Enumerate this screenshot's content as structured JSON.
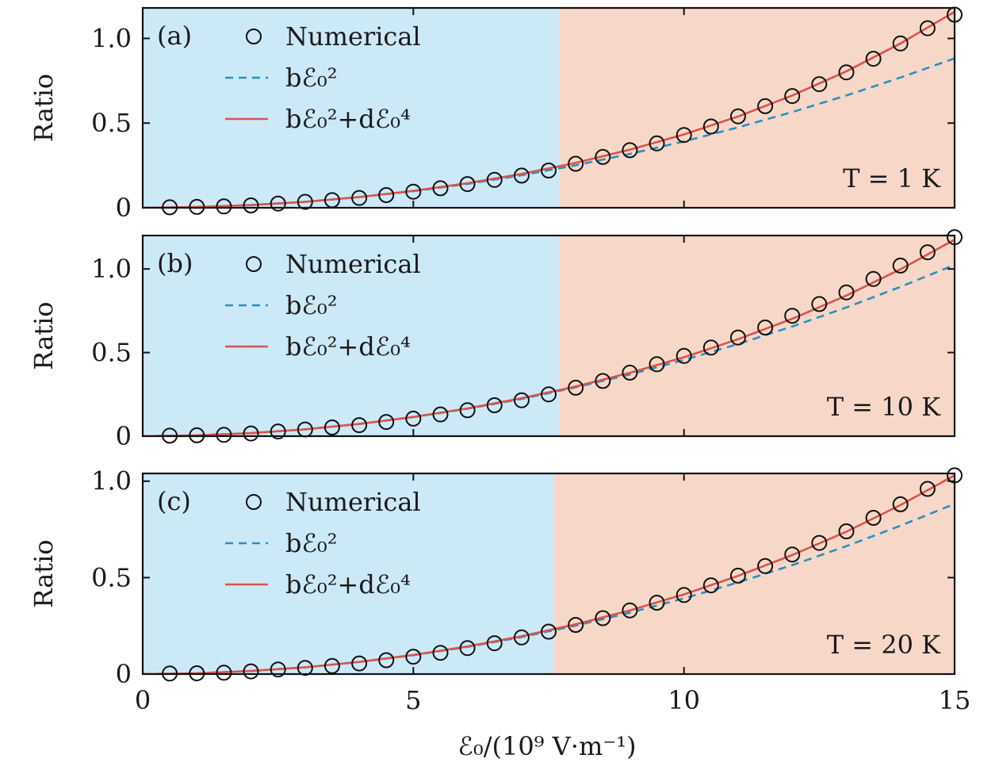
{
  "figure": {
    "x_axis_label": "ℰ₀/(10⁹ V·m⁻¹)",
    "y_axis_label": "Ratio",
    "x_tick_labels": [
      "0",
      "5",
      "10",
      "15"
    ],
    "y_tick_labels": [
      "0",
      "0.5",
      "1.0"
    ],
    "region_colors": {
      "low_field": "#cce9f8",
      "high_field": "#f7d8c8"
    },
    "series_colors": {
      "numerical": "#111111",
      "quadratic": "#2a8fc1",
      "quartic": "#d9544d"
    }
  },
  "chart_data": [
    {
      "type": "line",
      "panel_tag": "(a)",
      "temperature_label": "T = 1 K",
      "xlim": [
        0,
        15
      ],
      "ylim": [
        0,
        1.18
      ],
      "yticks": [
        0,
        0.5,
        1.0
      ],
      "xticks": [
        0,
        5,
        10,
        15
      ],
      "region_split_x": 7.7,
      "legend": [
        "Numerical",
        "bℰ₀²",
        "bℰ₀²+dℰ₀⁴"
      ],
      "series": [
        {
          "name": "Numerical",
          "style": "markers",
          "x": [
            0.5,
            1.0,
            1.5,
            2.0,
            2.5,
            3.0,
            3.5,
            4.0,
            4.5,
            5.0,
            5.5,
            6.0,
            6.5,
            7.0,
            7.5,
            8.0,
            8.5,
            9.0,
            9.5,
            10.0,
            10.5,
            11.0,
            11.5,
            12.0,
            12.5,
            13.0,
            13.5,
            14.0,
            14.5,
            15.0
          ],
          "y": [
            0.003,
            0.005,
            0.008,
            0.014,
            0.025,
            0.035,
            0.045,
            0.058,
            0.075,
            0.095,
            0.115,
            0.14,
            0.165,
            0.19,
            0.22,
            0.26,
            0.3,
            0.34,
            0.38,
            0.43,
            0.48,
            0.54,
            0.6,
            0.66,
            0.73,
            0.8,
            0.88,
            0.97,
            1.06,
            1.14
          ]
        },
        {
          "name": "bℰ₀²",
          "style": "dashed",
          "x": [
            0.0,
            1.0,
            2.0,
            3.0,
            4.0,
            5.0,
            6.0,
            7.0,
            8.0,
            9.0,
            10.0,
            11.0,
            12.0,
            13.0,
            14.0,
            15.0
          ],
          "y": [
            0.0,
            0.004,
            0.016,
            0.035,
            0.063,
            0.098,
            0.141,
            0.192,
            0.251,
            0.318,
            0.392,
            0.475,
            0.565,
            0.663,
            0.769,
            0.882
          ]
        },
        {
          "name": "bℰ₀²+dℰ₀⁴",
          "style": "solid",
          "x": [
            0.0,
            1.0,
            2.0,
            3.0,
            4.0,
            5.0,
            6.0,
            7.0,
            8.0,
            9.0,
            10.0,
            11.0,
            12.0,
            13.0,
            14.0,
            15.0
          ],
          "y": [
            0.0,
            0.004,
            0.016,
            0.035,
            0.063,
            0.1,
            0.145,
            0.2,
            0.265,
            0.343,
            0.433,
            0.539,
            0.663,
            0.806,
            0.97,
            1.157
          ]
        }
      ]
    },
    {
      "type": "line",
      "panel_tag": "(b)",
      "temperature_label": "T = 10 K",
      "xlim": [
        0,
        15
      ],
      "ylim": [
        0,
        1.2
      ],
      "yticks": [
        0,
        0.5,
        1.0
      ],
      "xticks": [
        0,
        5,
        10,
        15
      ],
      "region_split_x": 7.7,
      "legend": [
        "Numerical",
        "bℰ₀²",
        "bℰ₀²+dℰ₀⁴"
      ],
      "series": [
        {
          "name": "Numerical",
          "style": "markers",
          "x": [
            0.5,
            1.0,
            1.5,
            2.0,
            2.5,
            3.0,
            3.5,
            4.0,
            4.5,
            5.0,
            5.5,
            6.0,
            6.5,
            7.0,
            7.5,
            8.0,
            8.5,
            9.0,
            9.5,
            10.0,
            10.5,
            11.0,
            11.5,
            12.0,
            12.5,
            13.0,
            13.5,
            14.0,
            14.5,
            15.0
          ],
          "y": [
            0.003,
            0.005,
            0.008,
            0.016,
            0.028,
            0.04,
            0.052,
            0.066,
            0.085,
            0.105,
            0.13,
            0.155,
            0.185,
            0.215,
            0.25,
            0.29,
            0.33,
            0.38,
            0.43,
            0.48,
            0.53,
            0.59,
            0.65,
            0.72,
            0.79,
            0.86,
            0.94,
            1.02,
            1.1,
            1.19
          ]
        },
        {
          "name": "bℰ₀²",
          "style": "dashed",
          "x": [
            0.0,
            1.0,
            2.0,
            3.0,
            4.0,
            5.0,
            6.0,
            7.0,
            8.0,
            9.0,
            10.0,
            11.0,
            12.0,
            13.0,
            14.0,
            15.0
          ],
          "y": [
            0.0,
            0.005,
            0.018,
            0.041,
            0.073,
            0.114,
            0.164,
            0.223,
            0.292,
            0.369,
            0.456,
            0.551,
            0.656,
            0.77,
            0.893,
            1.025
          ]
        },
        {
          "name": "bℰ₀²+dℰ₀⁴",
          "style": "solid",
          "x": [
            0.0,
            1.0,
            2.0,
            3.0,
            4.0,
            5.0,
            6.0,
            7.0,
            8.0,
            9.0,
            10.0,
            11.0,
            12.0,
            13.0,
            14.0,
            15.0
          ],
          "y": [
            0.0,
            0.005,
            0.018,
            0.041,
            0.073,
            0.115,
            0.166,
            0.227,
            0.297,
            0.379,
            0.472,
            0.58,
            0.702,
            0.841,
            0.998,
            1.176
          ]
        }
      ]
    },
    {
      "type": "line",
      "panel_tag": "(c)",
      "temperature_label": "T = 20 K",
      "xlim": [
        0,
        15
      ],
      "ylim": [
        0,
        1.04
      ],
      "yticks": [
        0,
        0.5,
        1.0
      ],
      "xticks": [
        0,
        5,
        10,
        15
      ],
      "region_split_x": 7.6,
      "legend": [
        "Numerical",
        "bℰ₀²",
        "bℰ₀²+dℰ₀⁴"
      ],
      "series": [
        {
          "name": "Numerical",
          "style": "markers",
          "x": [
            0.5,
            1.0,
            1.5,
            2.0,
            2.5,
            3.0,
            3.5,
            4.0,
            4.5,
            5.0,
            5.5,
            6.0,
            6.5,
            7.0,
            7.5,
            8.0,
            8.5,
            9.0,
            9.5,
            10.0,
            10.5,
            11.0,
            11.5,
            12.0,
            12.5,
            13.0,
            13.5,
            14.0,
            14.5,
            15.0
          ],
          "y": [
            0.003,
            0.004,
            0.007,
            0.014,
            0.024,
            0.032,
            0.042,
            0.055,
            0.072,
            0.09,
            0.11,
            0.135,
            0.16,
            0.19,
            0.22,
            0.255,
            0.29,
            0.33,
            0.37,
            0.41,
            0.46,
            0.51,
            0.56,
            0.62,
            0.68,
            0.74,
            0.81,
            0.88,
            0.96,
            1.03
          ]
        },
        {
          "name": "bℰ₀²",
          "style": "dashed",
          "x": [
            0.0,
            1.0,
            2.0,
            3.0,
            4.0,
            5.0,
            6.0,
            7.0,
            8.0,
            9.0,
            10.0,
            11.0,
            12.0,
            13.0,
            14.0,
            15.0
          ],
          "y": [
            0.0,
            0.004,
            0.016,
            0.035,
            0.063,
            0.098,
            0.141,
            0.192,
            0.251,
            0.318,
            0.392,
            0.475,
            0.565,
            0.663,
            0.769,
            0.882
          ]
        },
        {
          "name": "bℰ₀²+dℰ₀⁴",
          "style": "solid",
          "x": [
            0.0,
            1.0,
            2.0,
            3.0,
            4.0,
            5.0,
            6.0,
            7.0,
            8.0,
            9.0,
            10.0,
            11.0,
            12.0,
            13.0,
            14.0,
            15.0
          ],
          "y": [
            0.0,
            0.004,
            0.016,
            0.035,
            0.063,
            0.099,
            0.143,
            0.196,
            0.258,
            0.33,
            0.413,
            0.509,
            0.617,
            0.738,
            0.876,
            1.03
          ]
        }
      ]
    }
  ]
}
